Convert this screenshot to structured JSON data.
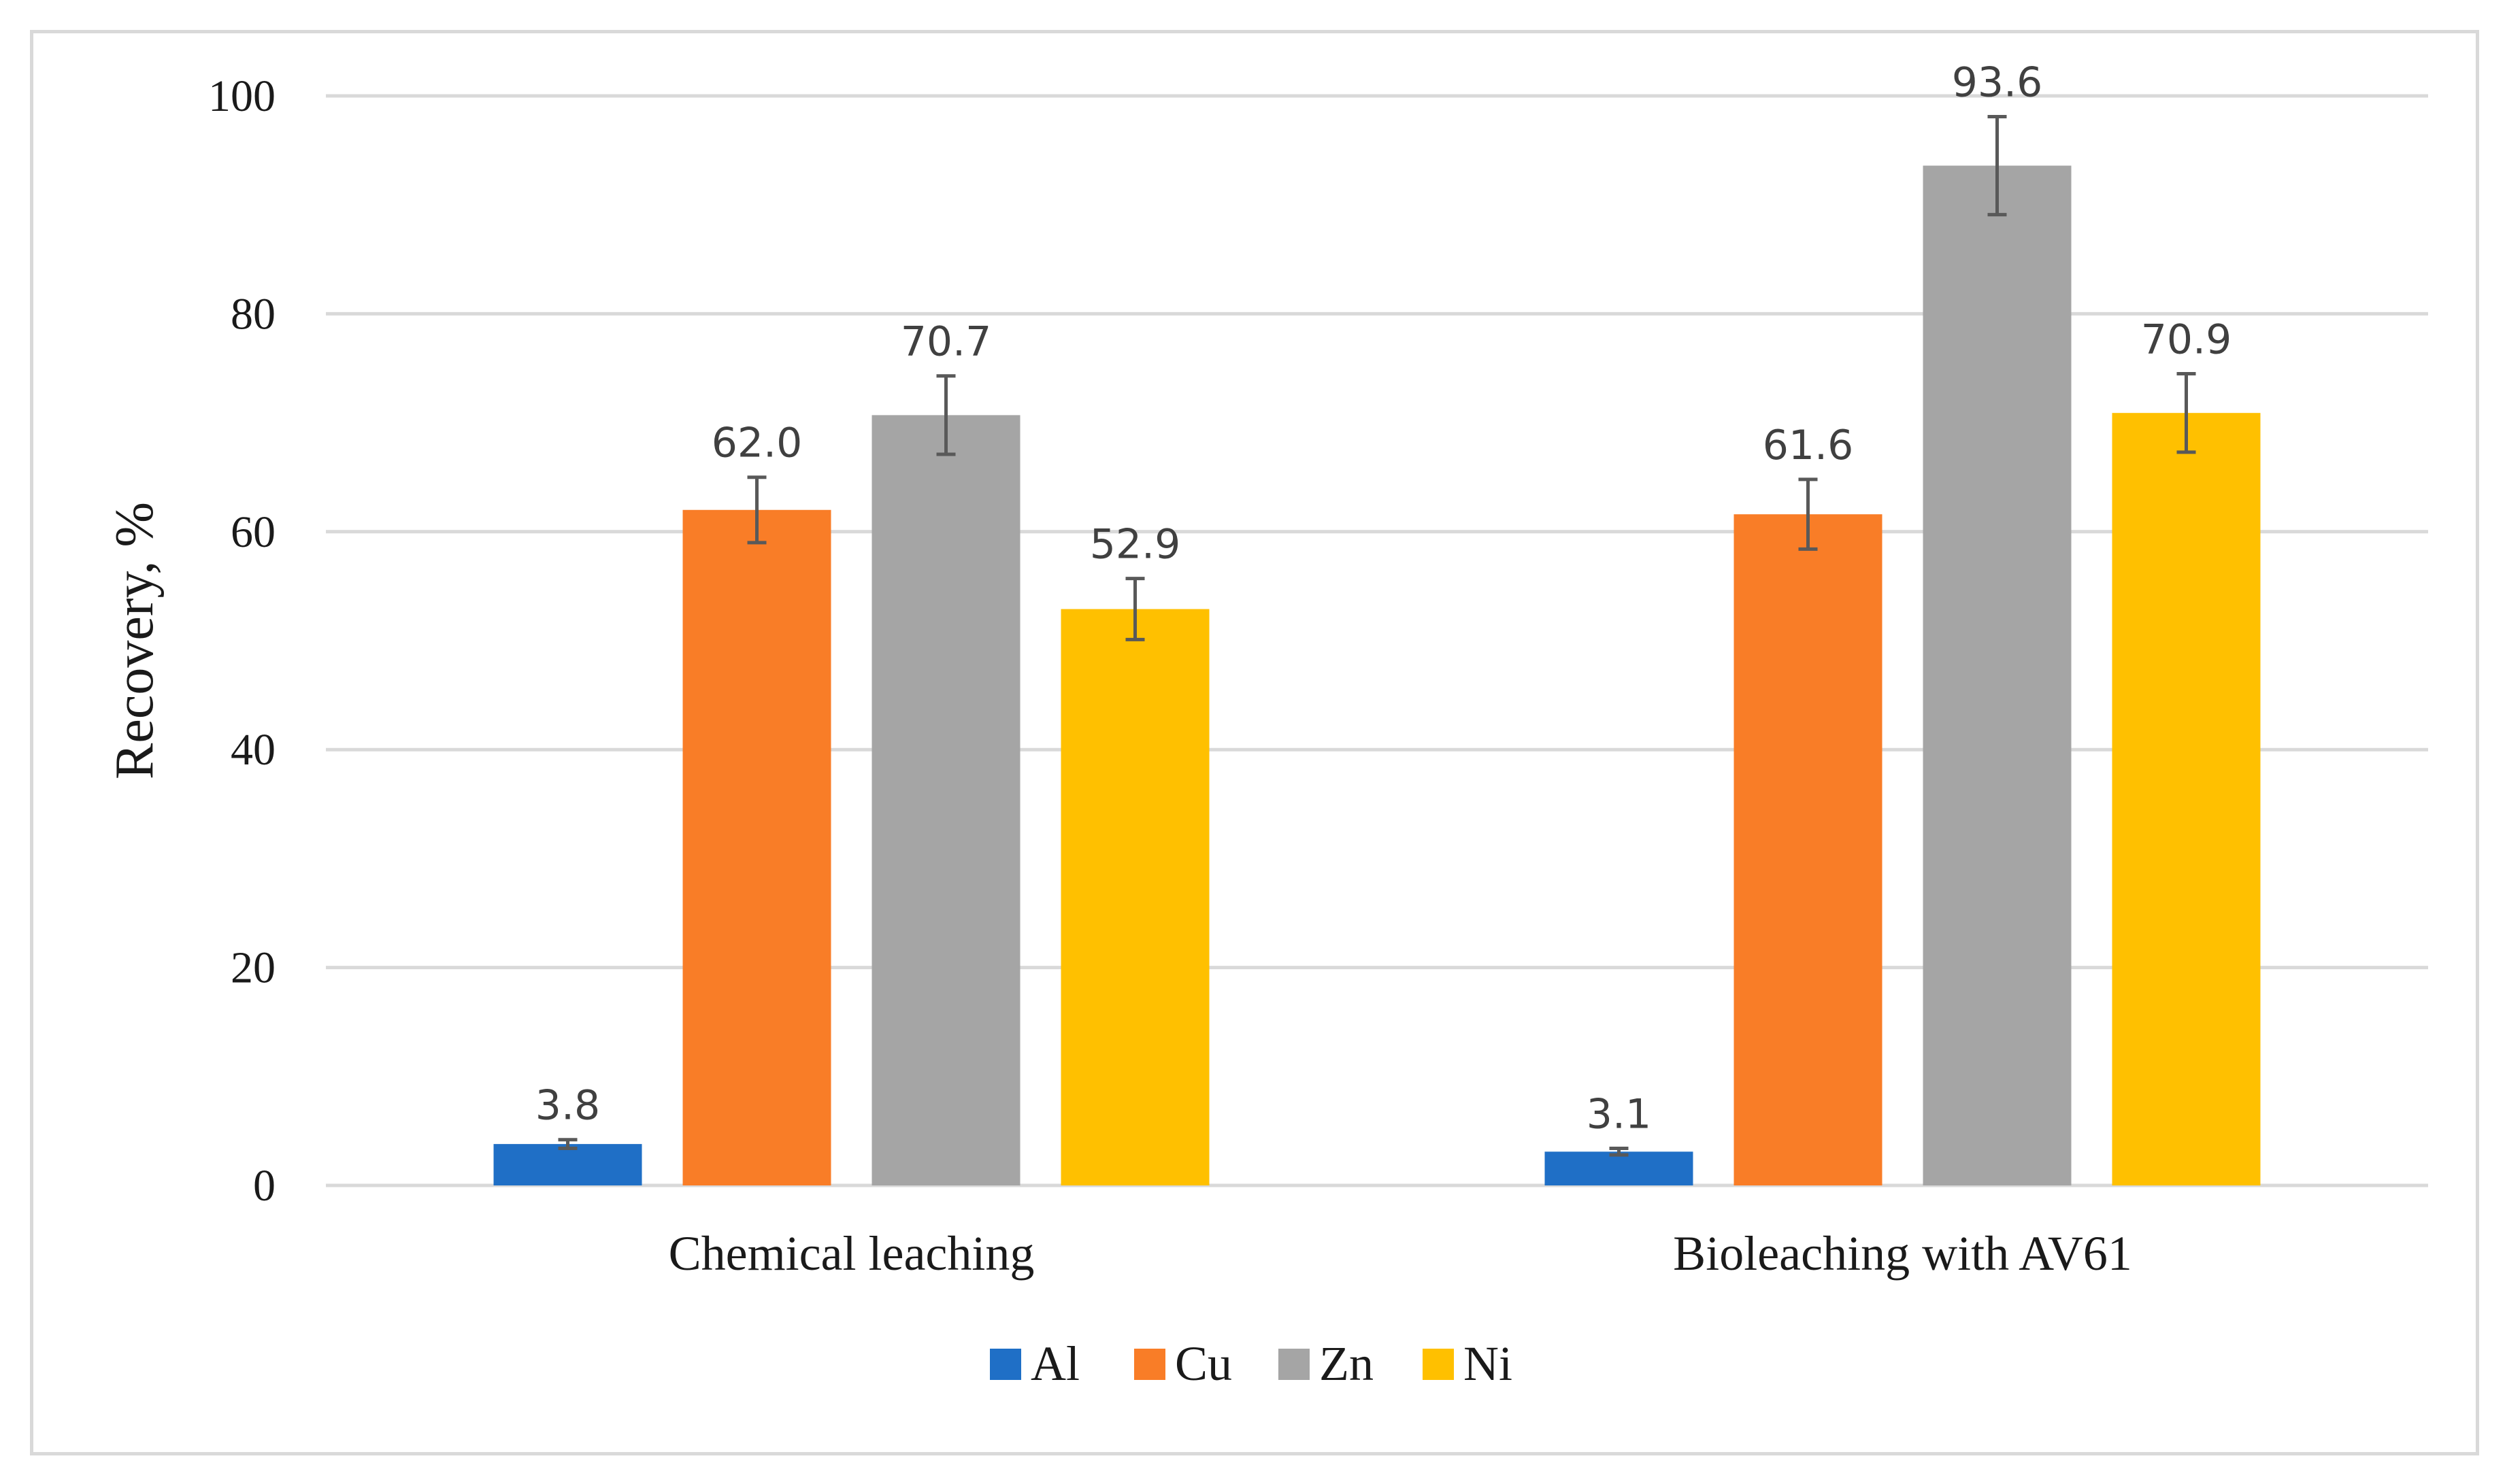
{
  "chart_data": {
    "type": "bar",
    "title": "",
    "xlabel": "",
    "ylabel": "Recovery, %",
    "ylim": [
      0,
      100
    ],
    "yticks": [
      0,
      20,
      40,
      60,
      80,
      100
    ],
    "grid": true,
    "legend_position": "bottom",
    "categories": [
      "Chemical leaching",
      "Bioleaching with AV61"
    ],
    "series": [
      {
        "name": "Al",
        "color": "#1f6fc6",
        "values": [
          3.8,
          3.1
        ],
        "labels": [
          "3.8",
          "3.1"
        ],
        "errors": [
          0.4,
          0.3
        ]
      },
      {
        "name": "Cu",
        "color": "#f97d27",
        "values": [
          62.0,
          61.6
        ],
        "labels": [
          "62.0",
          "61.6"
        ],
        "errors": [
          3.0,
          3.2
        ]
      },
      {
        "name": "Zn",
        "color": "#a5a5a5",
        "values": [
          70.7,
          93.6
        ],
        "labels": [
          "70.7",
          "93.6"
        ],
        "errors": [
          3.6,
          4.5
        ]
      },
      {
        "name": "Ni",
        "color": "#ffc000",
        "values": [
          52.9,
          70.9
        ],
        "labels": [
          "52.9",
          "70.9"
        ],
        "errors": [
          2.8,
          3.6
        ]
      }
    ]
  }
}
